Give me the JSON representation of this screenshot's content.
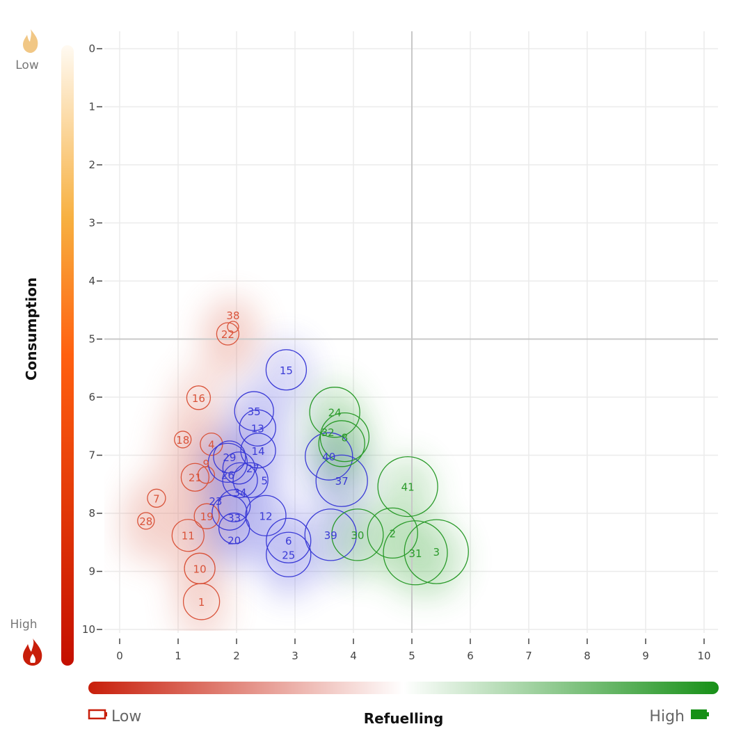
{
  "chart_data": {
    "type": "scatter",
    "title": "",
    "xlabel": "Refuelling",
    "ylabel": "Consumption",
    "xlim": [
      0,
      10
    ],
    "ylim": [
      10,
      0
    ],
    "y_reversed": true,
    "x_ticks": [
      "0",
      "1",
      "2",
      "3",
      "4",
      "5",
      "6",
      "7",
      "8",
      "9",
      "10"
    ],
    "y_ticks": [
      "0",
      "1",
      "2",
      "3",
      "4",
      "5",
      "6",
      "7",
      "8",
      "9",
      "10"
    ],
    "grid": true,
    "quadrant_lines": {
      "x": 5,
      "y": 5
    },
    "density_contours": true,
    "colors": {
      "red": "#d9533a",
      "blue": "#3a3ad6",
      "green": "#2a9a2a"
    },
    "series": [
      {
        "group": "red",
        "points": [
          {
            "label": "1",
            "x": 1.4,
            "y": 9.52,
            "size": 26
          },
          {
            "label": "10",
            "x": 1.37,
            "y": 8.95,
            "size": 22
          },
          {
            "label": "11",
            "x": 1.17,
            "y": 8.38,
            "size": 23
          },
          {
            "label": "19",
            "x": 1.49,
            "y": 8.05,
            "size": 18
          },
          {
            "label": "28",
            "x": 0.45,
            "y": 8.13,
            "size": 12
          },
          {
            "label": "7",
            "x": 0.63,
            "y": 7.74,
            "size": 13
          },
          {
            "label": "21",
            "x": 1.29,
            "y": 7.38,
            "size": 20
          },
          {
            "label": "9",
            "x": 1.48,
            "y": 7.34,
            "size": 12
          },
          {
            "label": "18",
            "x": 1.08,
            "y": 6.73,
            "size": 12
          },
          {
            "label": "4",
            "x": 1.57,
            "y": 6.81,
            "size": 16
          },
          {
            "label": "16",
            "x": 1.35,
            "y": 6.01,
            "size": 17
          },
          {
            "label": "22",
            "x": 1.85,
            "y": 4.91,
            "size": 16
          },
          {
            "label": "38",
            "x": 1.94,
            "y": 4.79,
            "size": 8
          }
        ]
      },
      {
        "group": "blue",
        "points": [
          {
            "label": "15",
            "x": 2.85,
            "y": 5.53,
            "size": 29
          },
          {
            "label": "35",
            "x": 2.3,
            "y": 6.24,
            "size": 28
          },
          {
            "label": "13",
            "x": 2.36,
            "y": 6.53,
            "size": 26
          },
          {
            "label": "14",
            "x": 2.37,
            "y": 6.92,
            "size": 25
          },
          {
            "label": "29",
            "x": 1.88,
            "y": 7.03,
            "size": 23
          },
          {
            "label": "26",
            "x": 1.85,
            "y": 7.13,
            "size": 28
          },
          {
            "label": "27",
            "x": 2.04,
            "y": 7.22,
            "size": 23
          },
          {
            "label": "34",
            "x": 2.06,
            "y": 7.43,
            "size": 25
          },
          {
            "label": "5",
            "x": 2.24,
            "y": 7.43,
            "size": 25
          },
          {
            "label": "33",
            "x": 1.96,
            "y": 7.87,
            "size": 23
          },
          {
            "label": "23",
            "x": 1.88,
            "y": 7.99,
            "size": 25
          },
          {
            "label": "20",
            "x": 1.96,
            "y": 8.26,
            "size": 22
          },
          {
            "label": "12",
            "x": 2.5,
            "y": 8.04,
            "size": 29
          },
          {
            "label": "6",
            "x": 2.89,
            "y": 8.47,
            "size": 32
          },
          {
            "label": "25",
            "x": 2.89,
            "y": 8.71,
            "size": 32
          },
          {
            "label": "39",
            "x": 3.61,
            "y": 8.37,
            "size": 37
          },
          {
            "label": "40",
            "x": 3.58,
            "y": 7.02,
            "size": 34
          },
          {
            "label": "37",
            "x": 3.8,
            "y": 7.44,
            "size": 37
          }
        ]
      },
      {
        "group": "green",
        "points": [
          {
            "label": "24",
            "x": 3.68,
            "y": 6.26,
            "size": 36
          },
          {
            "label": "8",
            "x": 3.85,
            "y": 6.69,
            "size": 35
          },
          {
            "label": "32",
            "x": 3.8,
            "y": 6.8,
            "size": 33
          },
          {
            "label": "30",
            "x": 4.07,
            "y": 8.37,
            "size": 37
          },
          {
            "label": "2",
            "x": 4.67,
            "y": 8.34,
            "size": 36
          },
          {
            "label": "41",
            "x": 4.93,
            "y": 7.54,
            "size": 43
          },
          {
            "label": "31",
            "x": 5.06,
            "y": 8.68,
            "size": 46
          },
          {
            "label": "3",
            "x": 5.42,
            "y": 8.66,
            "size": 46
          }
        ]
      }
    ],
    "y_colorbar": {
      "low_label": "Low",
      "high_label": "High",
      "low_color": "#fff8ee",
      "mid_color": "#f5a623",
      "high_color": "#c40f00"
    },
    "x_colorbar": {
      "low_label": "Low",
      "high_label": "High",
      "low_color": "#c81e0a",
      "mid_color": "#ffffff",
      "high_color": "#179017"
    }
  }
}
